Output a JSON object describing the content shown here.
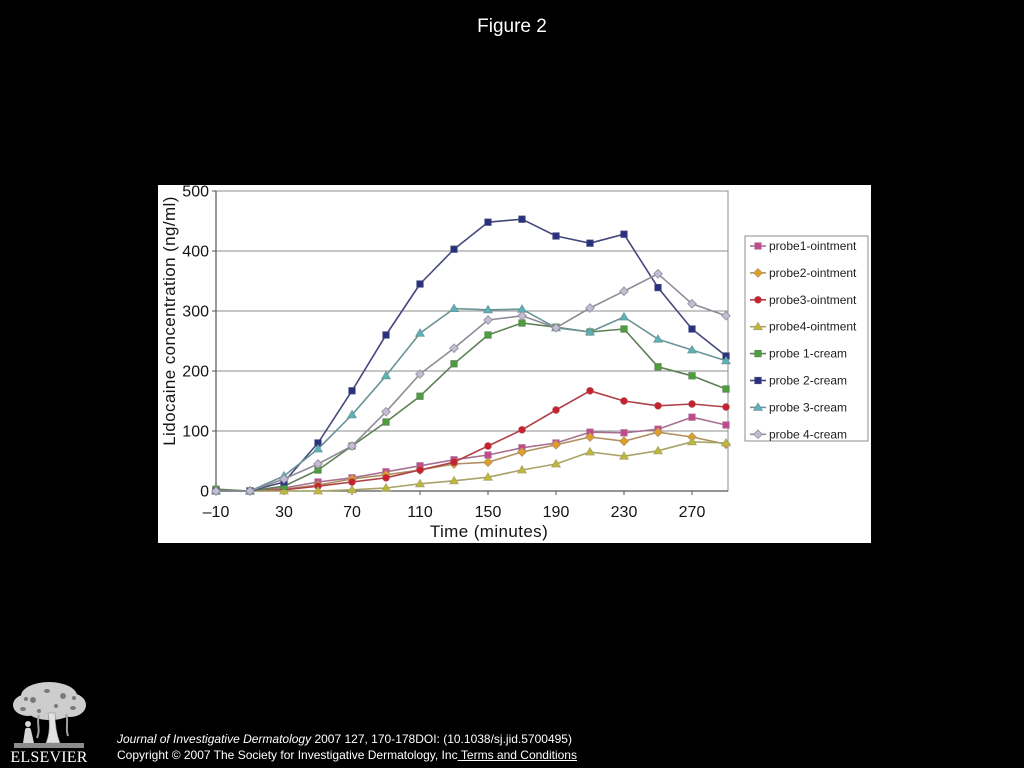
{
  "slide": {
    "title": "Figure 2"
  },
  "chart_data": {
    "type": "line",
    "xlabel": "Time (minutes)",
    "ylabel": "Lidocaine concentration (ng/ml)",
    "xlim": [
      -10,
      290
    ],
    "ylim": [
      0,
      500
    ],
    "x_ticks": [
      "–10",
      "30",
      "70",
      "110",
      "150",
      "190",
      "230",
      "270"
    ],
    "y_ticks": [
      0,
      100,
      200,
      300,
      400,
      500
    ],
    "grid": "horizontal",
    "legend_position": "right",
    "x": [
      -10,
      10,
      30,
      50,
      70,
      90,
      110,
      130,
      150,
      170,
      190,
      210,
      230,
      250,
      270,
      290
    ],
    "series": [
      {
        "name": "probe1-ointment",
        "marker": "square",
        "color": "#c4488f",
        "line_color": "#a87090",
        "values": [
          0,
          0,
          5,
          15,
          22,
          32,
          42,
          52,
          60,
          72,
          80,
          98,
          97,
          103,
          123,
          110
        ]
      },
      {
        "name": "probe2-ointment",
        "marker": "diamond",
        "color": "#e0a028",
        "line_color": "#b09060",
        "values": [
          0,
          0,
          3,
          10,
          20,
          27,
          35,
          45,
          48,
          65,
          77,
          90,
          83,
          98,
          90,
          78
        ]
      },
      {
        "name": "probe3-ointment",
        "marker": "circle",
        "color": "#c8202c",
        "line_color": "#b04048",
        "values": [
          0,
          0,
          2,
          8,
          15,
          22,
          35,
          48,
          75,
          102,
          135,
          167,
          150,
          142,
          145,
          140
        ]
      },
      {
        "name": "probe4-ointment",
        "marker": "triangle",
        "color": "#c0b838",
        "line_color": "#a8a468",
        "values": [
          0,
          0,
          0,
          0,
          2,
          5,
          12,
          17,
          23,
          35,
          45,
          65,
          58,
          67,
          82,
          80
        ]
      },
      {
        "name": "probe 1-cream",
        "marker": "square",
        "color": "#4ca03c",
        "line_color": "#5c8054",
        "values": [
          3,
          0,
          8,
          35,
          75,
          115,
          158,
          212,
          260,
          280,
          273,
          265,
          270,
          207,
          192,
          170
        ]
      },
      {
        "name": "probe 2-cream",
        "marker": "square",
        "color": "#283080",
        "line_color": "#44487c",
        "values": [
          0,
          0,
          15,
          80,
          167,
          260,
          345,
          403,
          448,
          453,
          425,
          413,
          428,
          339,
          270,
          225
        ]
      },
      {
        "name": "probe 3-cream",
        "marker": "triangle",
        "color": "#58b4b8",
        "line_color": "#6a9496",
        "values": [
          0,
          0,
          25,
          70,
          127,
          192,
          263,
          304,
          302,
          303,
          272,
          265,
          290,
          253,
          235,
          217
        ]
      },
      {
        "name": "probe 4-cream",
        "marker": "diamond",
        "color": "#c4bcd4",
        "line_color": "#8e8c98",
        "values": [
          0,
          0,
          20,
          45,
          75,
          132,
          195,
          238,
          285,
          292,
          272,
          305,
          333,
          362,
          312,
          292
        ]
      }
    ]
  },
  "logo": {
    "wordmark": "ELSEVIER"
  },
  "footer": {
    "journal_name": "Journal of Investigative Dermatology",
    "citation_details": "2007 127, 170-178DOI: (10.1038/sj.jid.5700495)",
    "copyright": "Copyright © 2007 The Society for Investigative Dermatology, Inc",
    "terms_link": "Terms and Conditions"
  }
}
